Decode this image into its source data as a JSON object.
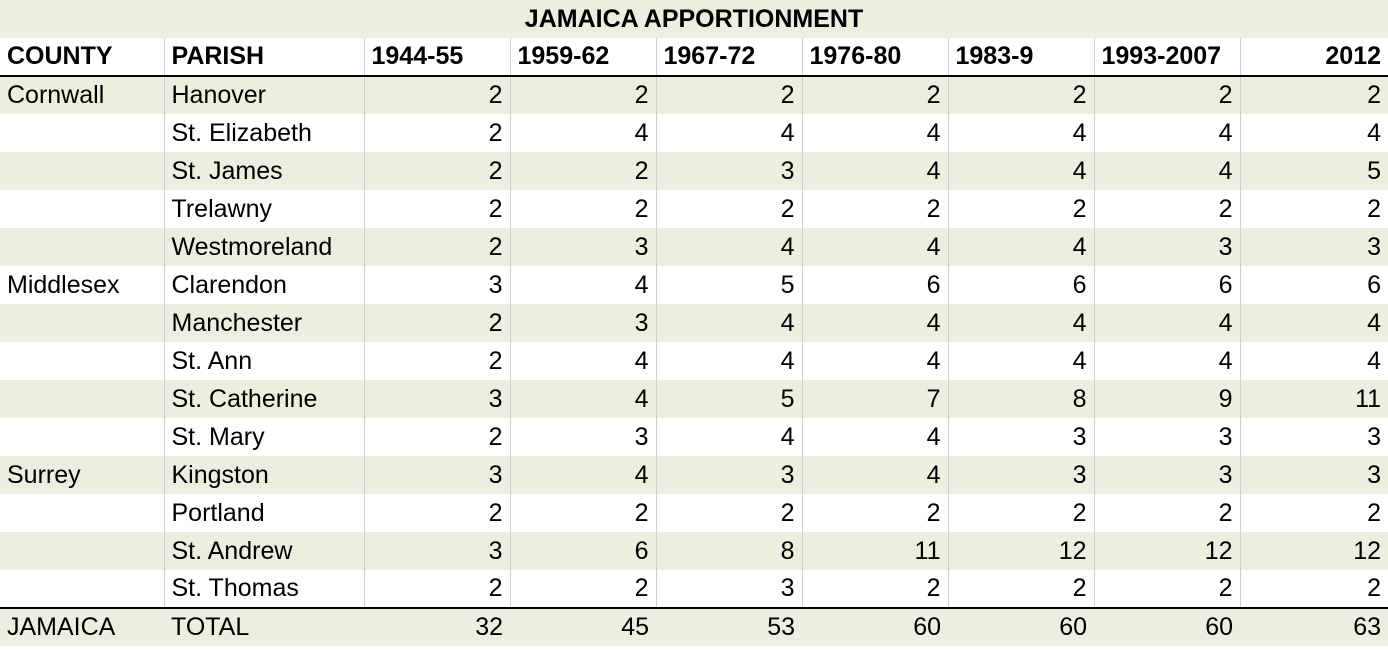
{
  "title": "JAMAICA APPORTIONMENT",
  "headers": [
    "COUNTY",
    "PARISH",
    "1944-55",
    "1959-62",
    "1967-72",
    "1976-80",
    "1983-9",
    "1993-2007",
    "2012"
  ],
  "rows": [
    {
      "county": "Cornwall",
      "parish": "Hanover",
      "values": [
        "2",
        "2",
        "2",
        "2",
        "2",
        "2",
        "2"
      ]
    },
    {
      "county": "",
      "parish": "St. Elizabeth",
      "values": [
        "2",
        "4",
        "4",
        "4",
        "4",
        "4",
        "4"
      ]
    },
    {
      "county": "",
      "parish": "St. James",
      "values": [
        "2",
        "2",
        "3",
        "4",
        "4",
        "4",
        "5"
      ]
    },
    {
      "county": "",
      "parish": "Trelawny",
      "values": [
        "2",
        "2",
        "2",
        "2",
        "2",
        "2",
        "2"
      ]
    },
    {
      "county": "",
      "parish": "Westmoreland",
      "values": [
        "2",
        "3",
        "4",
        "4",
        "4",
        "3",
        "3"
      ]
    },
    {
      "county": "Middlesex",
      "parish": "Clarendon",
      "values": [
        "3",
        "4",
        "5",
        "6",
        "6",
        "6",
        "6"
      ]
    },
    {
      "county": "",
      "parish": "Manchester",
      "values": [
        "2",
        "3",
        "4",
        "4",
        "4",
        "4",
        "4"
      ]
    },
    {
      "county": "",
      "parish": "St. Ann",
      "values": [
        "2",
        "4",
        "4",
        "4",
        "4",
        "4",
        "4"
      ]
    },
    {
      "county": "",
      "parish": "St. Catherine",
      "values": [
        "3",
        "4",
        "5",
        "7",
        "8",
        "9",
        "11"
      ]
    },
    {
      "county": "",
      "parish": "St. Mary",
      "values": [
        "2",
        "3",
        "4",
        "4",
        "3",
        "3",
        "3"
      ]
    },
    {
      "county": "Surrey",
      "parish": "Kingston",
      "values": [
        "3",
        "4",
        "3",
        "4",
        "3",
        "3",
        "3"
      ]
    },
    {
      "county": "",
      "parish": "Portland",
      "values": [
        "2",
        "2",
        "2",
        "2",
        "2",
        "2",
        "2"
      ]
    },
    {
      "county": "",
      "parish": "St. Andrew",
      "values": [
        "3",
        "6",
        "8",
        "11",
        "12",
        "12",
        "12"
      ]
    },
    {
      "county": "",
      "parish": "St. Thomas",
      "values": [
        "2",
        "2",
        "3",
        "2",
        "2",
        "2",
        "2"
      ]
    }
  ],
  "total": {
    "county": "JAMAICA",
    "parish": "TOTAL",
    "values": [
      "32",
      "45",
      "53",
      "60",
      "60",
      "60",
      "63"
    ]
  },
  "colors": {
    "band": "#eaefdf",
    "rule": "#000000",
    "gridline": "#cfcfcf"
  }
}
